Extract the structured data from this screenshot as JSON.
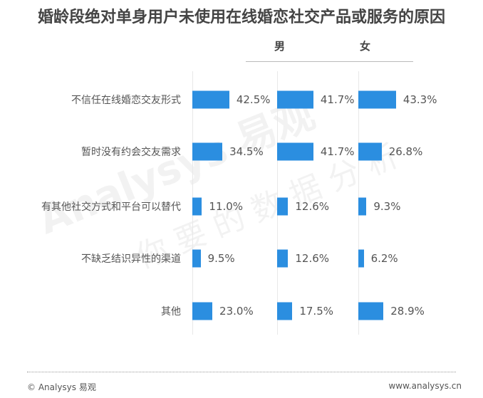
{
  "chart_data": {
    "type": "bar",
    "orientation": "horizontal",
    "title": "婚龄段绝对单身用户未使用在线婚恋社交产品或服务的原因",
    "categories": [
      "不信任在线婚恋交友形式",
      "暂时没有约会交友需求",
      "有其他社交方式和平台可以替代",
      "不缺乏结识异性的渠道",
      "其他"
    ],
    "series": [
      {
        "name": "",
        "values": [
          42.5,
          34.5,
          11.0,
          9.5,
          23.0
        ],
        "labels": [
          "42.5%",
          "34.5%",
          "11.0%",
          "9.5%",
          "23.0%"
        ]
      },
      {
        "name": "男",
        "values": [
          41.7,
          41.7,
          12.6,
          12.6,
          17.5
        ],
        "labels": [
          "41.7%",
          "41.7%",
          "12.6%",
          "12.6%",
          "17.5%"
        ]
      },
      {
        "name": "女",
        "values": [
          43.3,
          26.8,
          9.3,
          6.2,
          28.9
        ],
        "labels": [
          "43.3%",
          "26.8%",
          "9.3%",
          "6.2%",
          "28.9%"
        ]
      }
    ],
    "unit": "%",
    "bar_color": "#2b8ee0",
    "grid": false
  },
  "watermark": {
    "brand": "Analysys 易观",
    "slogan": "你要的数据分析"
  },
  "footer": {
    "left": "© Analysys 易观",
    "right": "www.analysys.cn"
  }
}
